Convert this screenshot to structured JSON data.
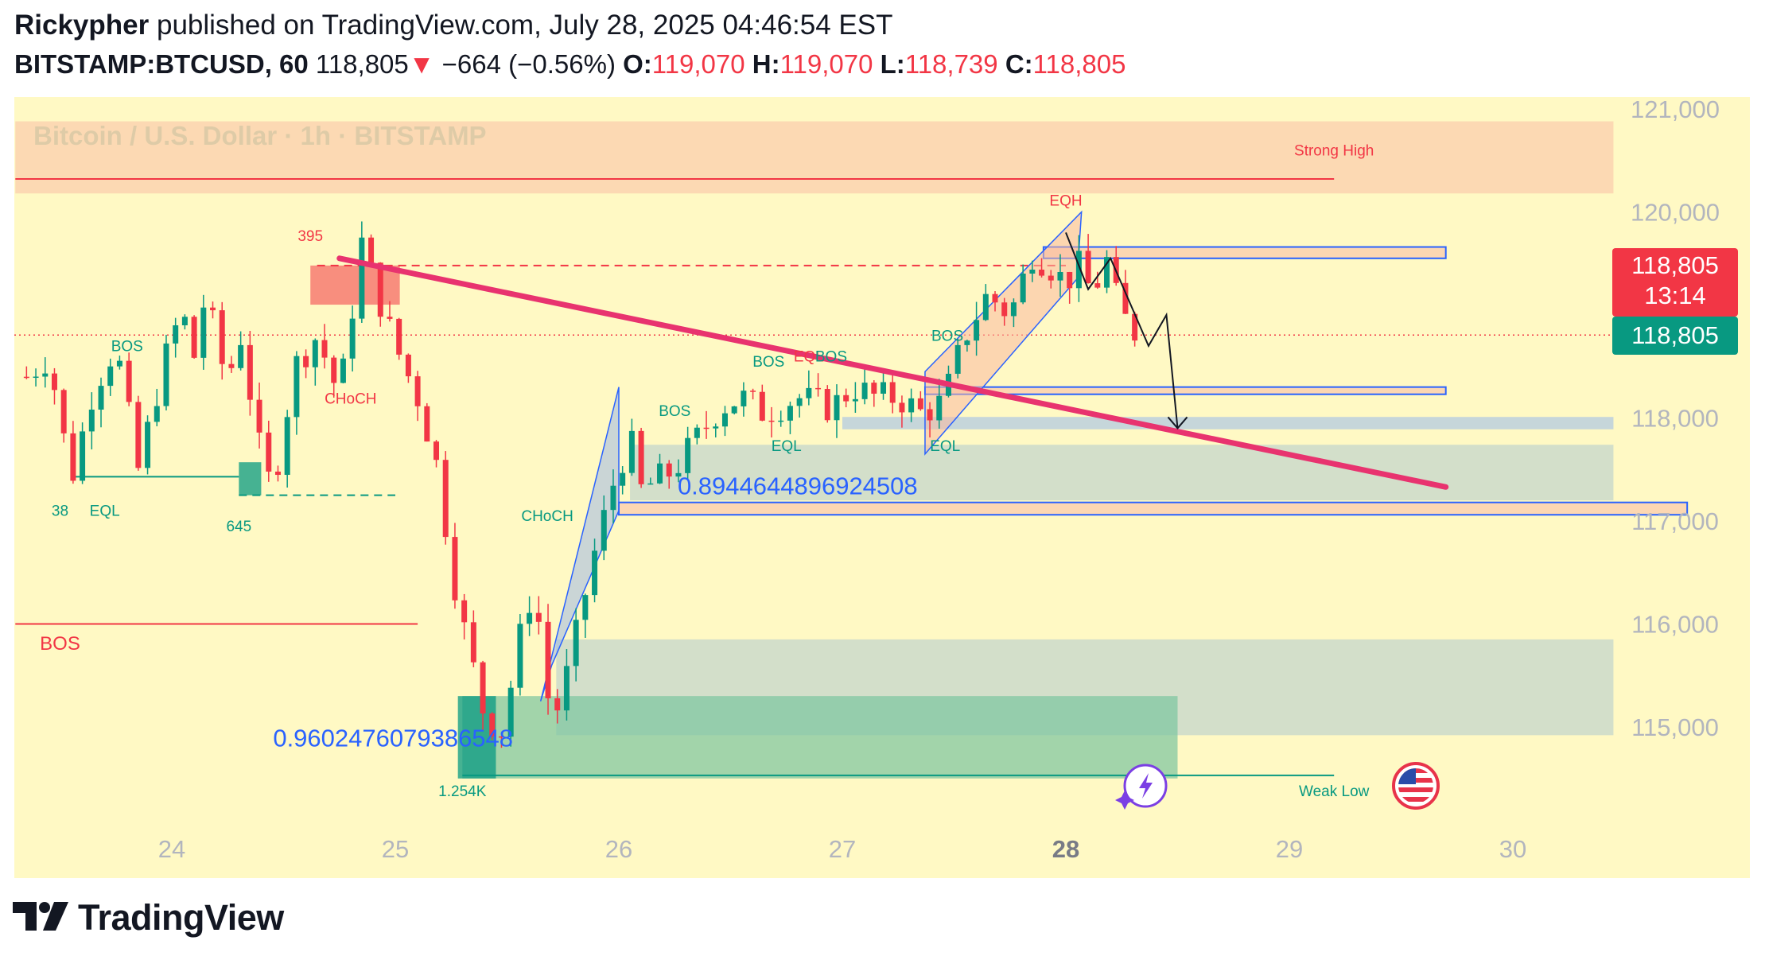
{
  "header": {
    "author": "Rickypher",
    "published_text": "published on TradingView.com, July 28, 2025 04:46:54 EST",
    "symbol": "BITSTAMP:BTCUSD, 60",
    "last": "118,805",
    "change_arrow": "▼",
    "change": "−664 (−0.56%)",
    "o_label": "O:",
    "o_value": "119,070",
    "h_label": "H:",
    "h_value": "119,070",
    "l_label": "L:",
    "l_value": "118,739",
    "c_label": "C:",
    "c_value": "118,805"
  },
  "watermark": "Bitcoin / U.S. Dollar · 1h · BITSTAMP",
  "price_tags": {
    "last": "118,805",
    "countdown": "13:14",
    "bid": "118,805"
  },
  "brand": {
    "name": "TradingView",
    "logo_icon": "tradingview-logo-icon"
  },
  "icons": {
    "flag": "us-flag-icon",
    "lightning": "lightning-icon"
  },
  "colors": {
    "bg_plot": "#fff9c4",
    "up": "#089981",
    "down": "#f23645",
    "trendline": "#e8336f",
    "zone_blue": "#2962ff",
    "zone_orange": "#fcd3b0",
    "zone_grey": "#c8d8cc",
    "zone_green": "#7ac4a0"
  },
  "chart_data": {
    "type": "candlestick",
    "ylim": [
      114300,
      121200
    ],
    "yticks": [
      {
        "v": 121000,
        "label": "121,000"
      },
      {
        "v": 120000,
        "label": "120,000"
      },
      {
        "v": 118000,
        "label": "118,000"
      },
      {
        "v": 117000,
        "label": "117,000"
      },
      {
        "v": 116000,
        "label": "116,000"
      },
      {
        "v": 115000,
        "label": "115,000"
      }
    ],
    "xticks": [
      {
        "t": 24,
        "label": "24"
      },
      {
        "t": 25,
        "label": "25"
      },
      {
        "t": 26,
        "label": "26"
      },
      {
        "t": 27,
        "label": "27"
      },
      {
        "t": 28,
        "label": "28",
        "bold": true
      },
      {
        "t": 29,
        "label": "29"
      },
      {
        "t": 30,
        "label": "30"
      }
    ],
    "last_price": 118805,
    "candles_path": [
      [
        23.35,
        118400
      ],
      [
        23.45,
        118600
      ],
      [
        23.55,
        117400
      ],
      [
        23.65,
        118300
      ],
      [
        23.75,
        118700
      ],
      [
        23.85,
        117500
      ],
      [
        23.95,
        118400
      ],
      [
        24.0,
        118800
      ],
      [
        24.05,
        119000
      ],
      [
        24.1,
        118600
      ],
      [
        24.15,
        119200
      ],
      [
        24.25,
        118300
      ],
      [
        24.3,
        118900
      ],
      [
        24.4,
        117600
      ],
      [
        24.45,
        117300
      ],
      [
        24.55,
        118500
      ],
      [
        24.65,
        118800
      ],
      [
        24.75,
        118200
      ],
      [
        24.85,
        119700
      ],
      [
        24.92,
        119200
      ],
      [
        25.0,
        118700
      ],
      [
        25.1,
        118200
      ],
      [
        25.18,
        117600
      ],
      [
        25.28,
        116200
      ],
      [
        25.4,
        115100
      ],
      [
        25.48,
        114960
      ],
      [
        25.55,
        115800
      ],
      [
        25.62,
        116400
      ],
      [
        25.7,
        115000
      ],
      [
        25.78,
        115600
      ],
      [
        25.88,
        116600
      ],
      [
        25.98,
        117400
      ],
      [
        26.05,
        117800
      ],
      [
        26.1,
        117300
      ],
      [
        26.25,
        117500
      ],
      [
        26.35,
        117800
      ],
      [
        26.45,
        118100
      ],
      [
        26.55,
        118200
      ],
      [
        26.65,
        118050
      ],
      [
        26.8,
        118200
      ],
      [
        26.95,
        118100
      ],
      [
        27.05,
        118300
      ],
      [
        27.15,
        118200
      ],
      [
        27.25,
        118200
      ],
      [
        27.35,
        118050
      ],
      [
        27.45,
        118150
      ],
      [
        27.55,
        118800
      ],
      [
        27.65,
        119200
      ],
      [
        27.75,
        119000
      ],
      [
        27.85,
        119600
      ],
      [
        27.92,
        119500
      ],
      [
        28.0,
        119300
      ],
      [
        28.05,
        119500
      ],
      [
        28.12,
        119200
      ],
      [
        28.18,
        119550
      ],
      [
        28.22,
        119200
      ],
      [
        28.25,
        119000
      ],
      [
        28.32,
        118800
      ]
    ],
    "trendline": [
      [
        24.75,
        119550
      ],
      [
        29.7,
        117330
      ]
    ],
    "zones": [
      {
        "name": "strong-high-zone",
        "t0": 23.3,
        "t1": 30.45,
        "p0": 120180,
        "p1": 120880,
        "color": "orange"
      },
      {
        "name": "supply-zone-top",
        "t0": 27.9,
        "t1": 29.7,
        "p0": 119550,
        "p1": 119660,
        "color": "orange-outline"
      },
      {
        "name": "supply-zone-mid",
        "t0": 27.37,
        "t1": 29.7,
        "p0": 118230,
        "p1": 118300,
        "color": "orange-outline"
      },
      {
        "name": "demand-zone-blue",
        "t0": 27.0,
        "t1": 30.45,
        "p0": 117890,
        "p1": 118010,
        "color": "blue-light"
      },
      {
        "name": "fvg-zone-grey",
        "t0": 26.05,
        "t1": 30.45,
        "p0": 117200,
        "p1": 117740,
        "color": "grey"
      },
      {
        "name": "fib-zone-outline",
        "t0": 26.0,
        "t1": 30.78,
        "p0": 117060,
        "p1": 117180,
        "color": "orange-outline"
      },
      {
        "name": "demand-zone-grey-low",
        "t0": 25.72,
        "t1": 30.45,
        "p0": 114920,
        "p1": 115850,
        "color": "grey"
      },
      {
        "name": "demand-zone-green",
        "t0": 25.3,
        "t1": 28.5,
        "p0": 114500,
        "p1": 115300,
        "color": "green"
      }
    ],
    "channels": [
      {
        "name": "rising-channel-1",
        "pts": [
          [
            25.65,
            115250
          ],
          [
            26.0,
            118300
          ],
          [
            26.0,
            117100
          ],
          [
            25.7,
            115600
          ]
        ]
      },
      {
        "name": "rising-channel-2",
        "pts": [
          [
            27.37,
            118450
          ],
          [
            28.07,
            120000
          ],
          [
            28.05,
            119350
          ],
          [
            27.37,
            117650
          ]
        ]
      }
    ],
    "levels": [
      {
        "name": "strong-high-line",
        "t0": 23.3,
        "t1": 29.2,
        "p": 120320,
        "color": "red"
      },
      {
        "name": "bos-line-low",
        "t0": 23.3,
        "t1": 25.1,
        "p": 116000,
        "color": "red"
      },
      {
        "name": "weak-low-line",
        "t0": 25.3,
        "t1": 29.2,
        "p": 114530,
        "color": "green"
      },
      {
        "name": "eql-line-1",
        "t0": 23.55,
        "t1": 24.3,
        "p": 117430,
        "color": "green"
      },
      {
        "name": "choch-dashed-1",
        "t0": 24.65,
        "t1": 28.0,
        "p": 119480,
        "color": "red-dashed"
      },
      {
        "name": "choch-dashed-2",
        "t0": 24.3,
        "t1": 25.0,
        "p": 117250,
        "color": "green-dashed"
      }
    ],
    "projection_path": [
      [
        28.0,
        119800
      ],
      [
        28.1,
        119250
      ],
      [
        28.2,
        119550
      ],
      [
        28.3,
        119050
      ],
      [
        28.37,
        118700
      ],
      [
        28.45,
        119000
      ],
      [
        28.5,
        117900
      ]
    ],
    "annotations": [
      {
        "text": "Strong High",
        "t": 29.2,
        "p": 120550,
        "color": "red",
        "size": 19
      },
      {
        "text": "EQH",
        "t": 28.0,
        "p": 120060,
        "color": "red",
        "size": 19
      },
      {
        "text": "395",
        "t": 24.62,
        "p": 119720,
        "color": "red",
        "size": 19
      },
      {
        "text": "CHoCH",
        "t": 24.8,
        "p": 118140,
        "color": "red",
        "size": 19
      },
      {
        "text": "BOS",
        "t": 23.8,
        "p": 118650,
        "color": "green",
        "size": 19
      },
      {
        "text": "EQL",
        "t": 23.7,
        "p": 117050,
        "color": "green",
        "size": 19
      },
      {
        "text": "38",
        "t": 23.5,
        "p": 117050,
        "color": "green",
        "size": 19
      },
      {
        "text": "645",
        "t": 24.3,
        "p": 116900,
        "color": "green",
        "size": 19
      },
      {
        "text": "BOS",
        "t": 23.5,
        "p": 115750,
        "color": "red",
        "size": 24
      },
      {
        "text": "CHoCH",
        "t": 25.68,
        "p": 117000,
        "color": "green",
        "size": 19
      },
      {
        "text": "BOS",
        "t": 26.25,
        "p": 118020,
        "color": "green",
        "size": 19
      },
      {
        "text": "EQL",
        "t": 26.75,
        "p": 117680,
        "color": "green",
        "size": 19
      },
      {
        "text": "BOS",
        "t": 26.67,
        "p": 118500,
        "color": "green",
        "size": 19
      },
      {
        "text": "EQL",
        "t": 26.85,
        "p": 118550,
        "color": "red",
        "size": 19
      },
      {
        "text": "BOS",
        "t": 26.95,
        "p": 118550,
        "color": "green",
        "size": 19
      },
      {
        "text": "BOS",
        "t": 27.47,
        "p": 118750,
        "color": "green",
        "size": 19
      },
      {
        "text": "EQL",
        "t": 27.46,
        "p": 117680,
        "color": "green",
        "size": 19
      },
      {
        "text": "1.254K",
        "t": 25.3,
        "p": 114330,
        "color": "green",
        "size": 19
      },
      {
        "text": "Weak Low",
        "t": 29.2,
        "p": 114330,
        "color": "green",
        "size": 19
      },
      {
        "text": "0.8944644896924508",
        "t": 26.8,
        "p": 117260,
        "color": "blue",
        "size": 31
      },
      {
        "text": "0.9602476079386548",
        "t": 24.99,
        "p": 114810,
        "color": "blue",
        "size": 31
      }
    ]
  }
}
